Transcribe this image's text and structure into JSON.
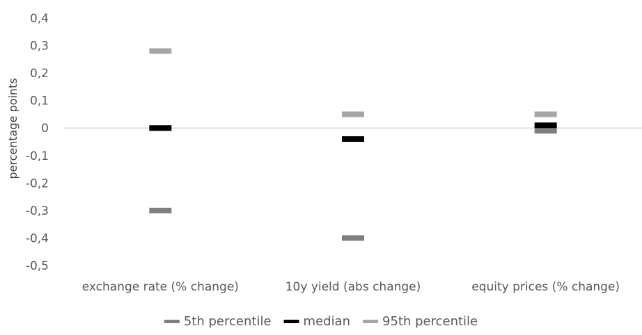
{
  "chart_data": {
    "type": "scatter",
    "title": "",
    "xlabel": "",
    "ylabel": "percentage points",
    "ylim": [
      -0.5,
      0.4
    ],
    "yticks": [
      0.4,
      0.3,
      0.2,
      0.1,
      0,
      -0.1,
      -0.2,
      -0.3,
      -0.4,
      -0.5
    ],
    "ytick_labels": [
      "0,4",
      "0,3",
      "0,2",
      "0,1",
      "0",
      "-0,1",
      "-0,2",
      "-0,3",
      "-0,4",
      "-0,5"
    ],
    "categories": [
      "exchange rate (% change)",
      "10y yield (abs change)",
      "equity prices (% change)"
    ],
    "series": [
      {
        "name": "5th percentile",
        "color": "#7f7f7f",
        "values": [
          -0.3,
          -0.4,
          -0.01
        ]
      },
      {
        "name": "median",
        "color": "#000000",
        "values": [
          0.0,
          -0.04,
          0.01
        ]
      },
      {
        "name": "95th percentile",
        "color": "#a6a6a6",
        "values": [
          0.28,
          0.05,
          0.05
        ]
      }
    ],
    "grid": false,
    "legend_position": "bottom",
    "marker": "dash"
  }
}
